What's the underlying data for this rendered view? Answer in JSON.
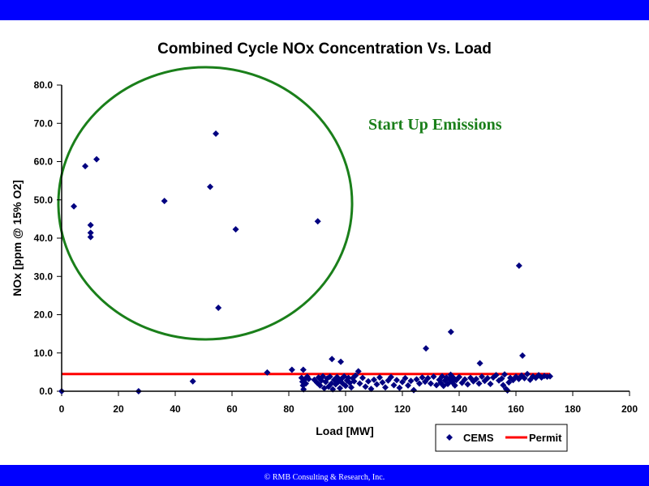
{
  "footer": "© RMB Consulting & Research, Inc.",
  "colors": {
    "banner": "#0000ff",
    "cems": "#000080",
    "permit": "#ff0000",
    "annotation": "#1a7f1a"
  },
  "chart_data": {
    "type": "scatter",
    "title": "Combined Cycle NOx Concentration Vs. Load",
    "xlabel": "Load [MW]",
    "ylabel": "NOx [ppm @ 15% O2]",
    "xlim": [
      0,
      200
    ],
    "ylim": [
      0,
      80
    ],
    "xticks": [
      "0",
      "20",
      "40",
      "60",
      "80",
      "100",
      "120",
      "140",
      "160",
      "180",
      "200"
    ],
    "yticks": [
      "0.0",
      "10.0",
      "20.0",
      "30.0",
      "40.0",
      "50.0",
      "60.0",
      "70.0",
      "80.0"
    ],
    "grid": false,
    "legend": {
      "position": "bottom-right",
      "entries": [
        "CEMS",
        "Permit"
      ]
    },
    "annotation": "Start Up Emissions",
    "series": [
      {
        "name": "CEMS",
        "kind": "scatter",
        "points": [
          [
            0,
            0
          ],
          [
            4.3,
            48.3
          ],
          [
            8.3,
            58.8
          ],
          [
            12.3,
            60.6
          ],
          [
            10.2,
            43.4
          ],
          [
            10.2,
            41.4
          ],
          [
            10.2,
            40.3
          ],
          [
            36.2,
            49.7
          ],
          [
            52.3,
            53.4
          ],
          [
            54.3,
            67.3
          ],
          [
            61.3,
            42.3
          ],
          [
            90.2,
            44.4
          ],
          [
            55.2,
            21.8
          ],
          [
            27.1,
            0
          ],
          [
            46.2,
            2.6
          ],
          [
            72.4,
            4.9
          ],
          [
            81.1,
            5.6
          ],
          [
            85.1,
            5.6
          ],
          [
            95.2,
            8.4
          ],
          [
            98.3,
            7.7
          ],
          [
            128.3,
            11.2
          ],
          [
            137.1,
            15.5
          ],
          [
            147.3,
            7.3
          ],
          [
            162.3,
            9.3
          ],
          [
            104.5,
            5.2
          ],
          [
            161.1,
            32.8
          ],
          [
            84.5,
            3.5
          ],
          [
            84.8,
            2.5
          ],
          [
            85.0,
            1.5
          ],
          [
            85.2,
            0.5
          ],
          [
            85.5,
            3.0
          ],
          [
            86,
            2.0
          ],
          [
            86.5,
            3.8
          ],
          [
            87,
            3.2
          ],
          [
            89,
            3.0
          ],
          [
            90,
            2.2
          ],
          [
            90.5,
            3.6
          ],
          [
            91,
            1.5
          ],
          [
            91.5,
            2.8
          ],
          [
            92,
            3.9
          ],
          [
            92.5,
            0.8
          ],
          [
            93,
            2.4
          ],
          [
            93.5,
            3.3
          ],
          [
            94,
            1.2
          ],
          [
            94.5,
            3.8
          ],
          [
            95,
            2.0
          ],
          [
            95.5,
            0.5
          ],
          [
            96,
            3.0
          ],
          [
            96.5,
            1.8
          ],
          [
            97,
            3.7
          ],
          [
            97.5,
            2.5
          ],
          [
            98,
            0.8
          ],
          [
            98.5,
            3.2
          ],
          [
            99,
            2.0
          ],
          [
            99.5,
            3.9
          ],
          [
            100,
            1.4
          ],
          [
            100.5,
            2.8
          ],
          [
            101,
            3.5
          ],
          [
            101.5,
            2.2
          ],
          [
            102,
            1.0
          ],
          [
            102.5,
            3.4
          ],
          [
            103,
            2.6
          ],
          [
            103.5,
            4.1
          ],
          [
            105,
            2.0
          ],
          [
            106,
            3.5
          ],
          [
            107,
            1.2
          ],
          [
            108,
            2.6
          ],
          [
            109,
            0.6
          ],
          [
            110,
            3.0
          ],
          [
            111,
            1.8
          ],
          [
            112,
            3.6
          ],
          [
            113,
            2.3
          ],
          [
            114,
            1.0
          ],
          [
            115,
            2.8
          ],
          [
            116,
            3.7
          ],
          [
            117,
            1.6
          ],
          [
            118,
            2.9
          ],
          [
            119,
            0.9
          ],
          [
            120,
            2.4
          ],
          [
            121,
            3.4
          ],
          [
            122,
            1.5
          ],
          [
            123,
            2.7
          ],
          [
            124,
            0.3
          ],
          [
            125,
            3.1
          ],
          [
            126,
            2.0
          ],
          [
            127,
            3.6
          ],
          [
            128,
            2.5
          ],
          [
            129,
            3.4
          ],
          [
            130,
            2.0
          ],
          [
            131,
            3.8
          ],
          [
            132,
            1.6
          ],
          [
            133,
            3.0
          ],
          [
            133.5,
            2.2
          ],
          [
            134,
            3.9
          ],
          [
            134.5,
            1.4
          ],
          [
            135,
            2.8
          ],
          [
            135.5,
            3.6
          ],
          [
            136,
            1.9
          ],
          [
            136.5,
            3.2
          ],
          [
            137,
            4.3
          ],
          [
            137.5,
            2.4
          ],
          [
            138,
            3.5
          ],
          [
            138.5,
            1.5
          ],
          [
            139,
            2.9
          ],
          [
            140,
            3.7
          ],
          [
            141,
            2.2
          ],
          [
            142,
            3.1
          ],
          [
            143,
            1.8
          ],
          [
            144,
            3.5
          ],
          [
            145,
            2.6
          ],
          [
            146,
            3.2
          ],
          [
            147,
            2.0
          ],
          [
            148,
            3.8
          ],
          [
            149,
            2.7
          ],
          [
            150,
            3.4
          ],
          [
            151,
            1.9
          ],
          [
            152,
            3.6
          ],
          [
            153,
            4.2
          ],
          [
            154,
            2.8
          ],
          [
            155,
            3.3
          ],
          [
            155.5,
            1.6
          ],
          [
            156,
            4.4
          ],
          [
            156.5,
            0.6
          ],
          [
            157,
            0.2
          ],
          [
            157.5,
            2.3
          ],
          [
            158,
            3.5
          ],
          [
            159,
            2.9
          ],
          [
            160,
            3.8
          ],
          [
            161,
            3.2
          ],
          [
            162,
            4.1
          ],
          [
            163,
            3.4
          ],
          [
            164,
            4.5
          ],
          [
            165,
            3.0
          ],
          [
            166,
            3.9
          ],
          [
            167,
            3.5
          ],
          [
            168,
            4.2
          ],
          [
            169,
            3.6
          ],
          [
            170,
            4.0
          ],
          [
            171,
            3.8
          ],
          [
            172,
            3.9
          ]
        ]
      },
      {
        "name": "Permit",
        "kind": "line",
        "points": [
          [
            0,
            4.5
          ],
          [
            172,
            4.5
          ]
        ]
      }
    ]
  }
}
